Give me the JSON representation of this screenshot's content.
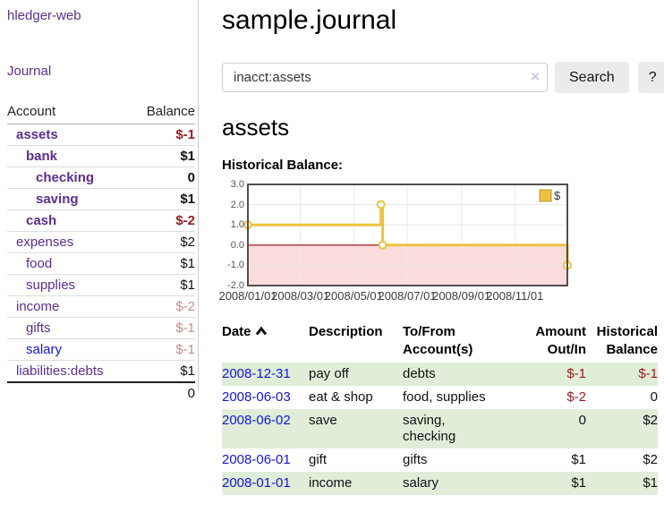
{
  "app": {
    "title": "hledger-web"
  },
  "sidebar": {
    "journal_link": "Journal",
    "accounts_table": {
      "headers": [
        "Account",
        "Balance"
      ],
      "rows": [
        {
          "name": "assets",
          "balance": "$-1"
        },
        {
          "name": "bank",
          "balance": "$1"
        },
        {
          "name": "checking",
          "balance": "0"
        },
        {
          "name": "saving",
          "balance": "$1"
        },
        {
          "name": "cash",
          "balance": "$-2"
        },
        {
          "name": "expenses",
          "balance": "$2"
        },
        {
          "name": "food",
          "balance": "$1"
        },
        {
          "name": "supplies",
          "balance": "$1"
        },
        {
          "name": "income",
          "balance": "$-2"
        },
        {
          "name": "gifts",
          "balance": "$-1"
        },
        {
          "name": "salary",
          "balance": "$-1"
        },
        {
          "name": "liabilities:debts",
          "balance": "$1"
        }
      ],
      "total": "0"
    }
  },
  "main": {
    "title": "sample.journal",
    "search": {
      "value": "inacct:assets",
      "clear_icon": "×",
      "button_label": "Search",
      "help_label": "?"
    },
    "account_heading": "assets",
    "chart_label": "Historical Balance:"
  },
  "chart_data": {
    "type": "line",
    "title": "Historical Balance:",
    "series": [
      {
        "name": "$",
        "step": true,
        "points": [
          [
            "2008-01-01",
            1.0
          ],
          [
            "2008-06-01",
            2.0
          ],
          [
            "2008-06-03",
            0.0
          ],
          [
            "2008-12-31",
            -1.0
          ]
        ]
      }
    ],
    "x_range": [
      "2008-01-01",
      "2008-12-31"
    ],
    "ylim": [
      -2.0,
      3.0
    ],
    "yticks": [
      3.0,
      2.0,
      1.0,
      0.0,
      -1.0,
      -2.0
    ],
    "xtick_dates": [
      "2008-01-01",
      "2008-03-01",
      "2008-05-01",
      "2008-07-01",
      "2008-09-01",
      "2008-11-01"
    ],
    "xtick_labels": [
      "2008/01/01",
      "2008/03/01",
      "2008/05/01",
      "2008/07/01",
      "2008/09/01",
      "2008/11/01"
    ],
    "legend": {
      "label": "$",
      "position": "top-right"
    },
    "grid": true,
    "colors": {
      "series": "#edc240",
      "marker_fill": "#ffffff",
      "negative_region": "#fbdcdc",
      "zero_line": "#8b0000",
      "grid": "#e8e8e8",
      "border": "#4f4f4f",
      "tick_text": "#545454",
      "legend_border": "#b89b2e"
    }
  },
  "register": {
    "columns": {
      "date": "Date",
      "description": "Description",
      "accounts_line1": "To/From",
      "accounts_line2": "Account(s)",
      "amount_line1": "Amount",
      "amount_line2": "Out/In",
      "balance_line1": "Historical",
      "balance_line2": "Balance"
    },
    "sort_icon": "chevron-up",
    "rows": [
      {
        "date": "2008-12-31",
        "description": "pay off",
        "accounts": "debts",
        "amount": "$-1",
        "balance": "$-1"
      },
      {
        "date": "2008-06-03",
        "description": "eat & shop",
        "accounts": "food, supplies",
        "amount": "$-2",
        "balance": "0"
      },
      {
        "date": "2008-06-02",
        "description": "save",
        "accounts": "saving, checking",
        "amount": "0",
        "balance": "$2"
      },
      {
        "date": "2008-06-01",
        "description": "gift",
        "accounts": "gifts",
        "amount": "$1",
        "balance": "$2"
      },
      {
        "date": "2008-01-01",
        "description": "income",
        "accounts": "salary",
        "amount": "$1",
        "balance": "$1"
      }
    ]
  }
}
